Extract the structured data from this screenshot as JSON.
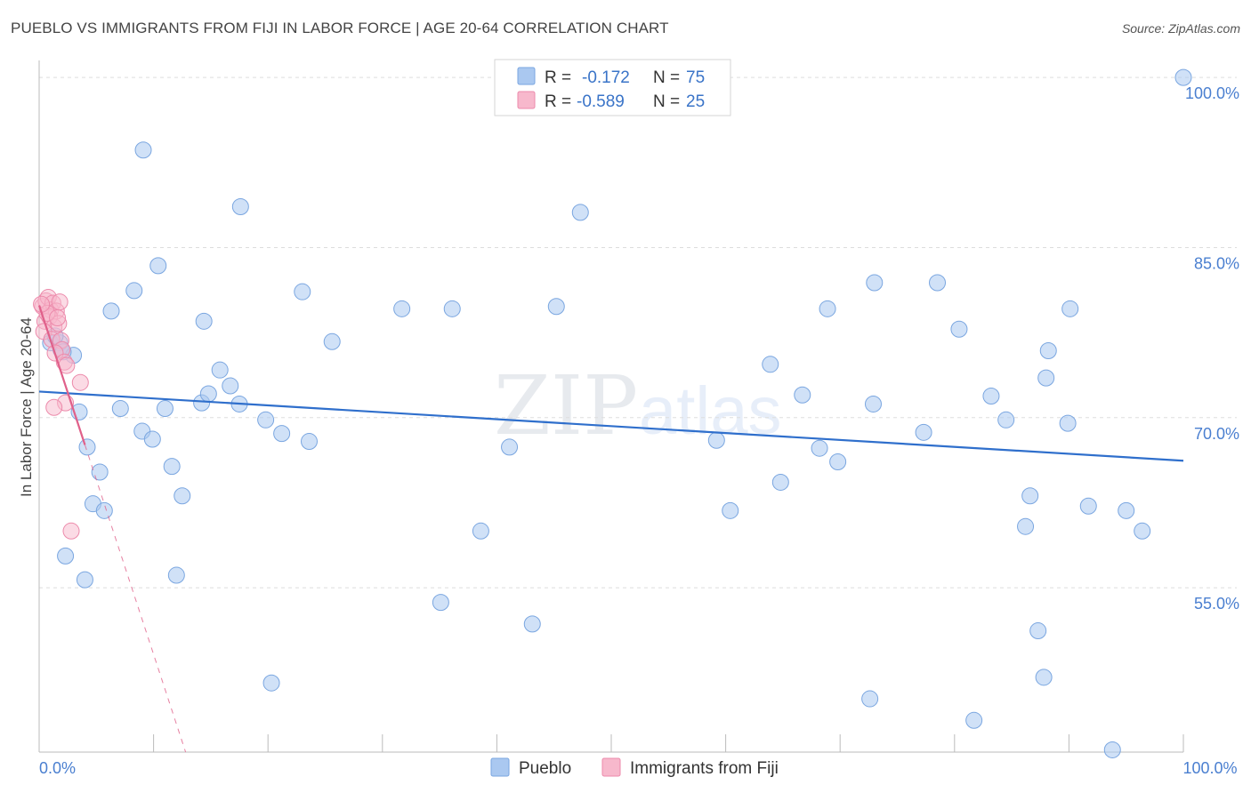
{
  "title": "PUEBLO VS IMMIGRANTS FROM FIJI IN LABOR FORCE | AGE 20-64 CORRELATION CHART",
  "source": "Source: ZipAtlas.com",
  "watermark": {
    "zip": "ZIP",
    "atlas": "atlas"
  },
  "legend": {
    "rows": [
      {
        "r_label": "R =",
        "r_value": "-0.172",
        "n_label": "N =",
        "n_value": "75"
      },
      {
        "r_label": "R =",
        "r_value": "-0.589",
        "n_label": "N =",
        "n_value": "25"
      }
    ]
  },
  "bottom_legend": [
    "Pueblo",
    "Immigrants from Fiji"
  ],
  "colors": {
    "pueblo_fill": "#aac8f0",
    "pueblo_stroke": "#7aa6e0",
    "pueblo_line": "#2f6fcc",
    "fiji_fill": "#f7b8cc",
    "fiji_stroke": "#ec8aab",
    "fiji_line": "#e0608a",
    "tick": "#4a7fd0",
    "grid": "#dddddd"
  },
  "chart_data": {
    "type": "scatter",
    "xlabel": "",
    "ylabel": "In Labor Force | Age 20-64",
    "xlim": [
      0,
      100
    ],
    "ylim": [
      40.5,
      101.5
    ],
    "x_tick_labels": [
      {
        "x": 0,
        "label": "0.0%"
      },
      {
        "x": 100,
        "label": "100.0%"
      }
    ],
    "y_tick_labels": [
      {
        "y": 100,
        "label": "100.0%"
      },
      {
        "y": 85,
        "label": "85.0%"
      },
      {
        "y": 70,
        "label": "70.0%"
      },
      {
        "y": 55,
        "label": "55.0%"
      }
    ],
    "series": [
      {
        "name": "Pueblo",
        "r": -0.172,
        "n": 75,
        "trend": {
          "x": [
            0,
            100
          ],
          "y": [
            72.3,
            66.2
          ]
        },
        "points": [
          [
            1.0,
            76.6
          ],
          [
            1.8,
            76.6
          ],
          [
            1.9,
            76.0
          ],
          [
            3.0,
            75.5
          ],
          [
            3.5,
            70.5
          ],
          [
            4.2,
            67.4
          ],
          [
            2.3,
            57.8
          ],
          [
            4.0,
            55.7
          ],
          [
            5.3,
            65.2
          ],
          [
            4.7,
            62.4
          ],
          [
            5.7,
            61.8
          ],
          [
            6.3,
            79.4
          ],
          [
            7.1,
            70.8
          ],
          [
            8.3,
            81.2
          ],
          [
            9.0,
            68.8
          ],
          [
            9.1,
            93.6
          ],
          [
            9.9,
            68.1
          ],
          [
            10.4,
            83.4
          ],
          [
            11.0,
            70.8
          ],
          [
            11.6,
            65.7
          ],
          [
            12.0,
            56.1
          ],
          [
            12.5,
            63.1
          ],
          [
            14.4,
            78.5
          ],
          [
            14.2,
            71.3
          ],
          [
            14.8,
            72.1
          ],
          [
            15.8,
            74.2
          ],
          [
            16.7,
            72.8
          ],
          [
            17.5,
            71.2
          ],
          [
            17.6,
            88.6
          ],
          [
            19.8,
            69.8
          ],
          [
            20.3,
            46.6
          ],
          [
            21.2,
            68.6
          ],
          [
            23.0,
            81.1
          ],
          [
            23.6,
            67.9
          ],
          [
            25.6,
            76.7
          ],
          [
            31.7,
            79.6
          ],
          [
            35.1,
            53.7
          ],
          [
            36.1,
            79.6
          ],
          [
            38.6,
            60.0
          ],
          [
            41.1,
            67.4
          ],
          [
            43.1,
            51.8
          ],
          [
            45.2,
            79.8
          ],
          [
            47.3,
            88.1
          ],
          [
            59.2,
            68.0
          ],
          [
            60.4,
            61.8
          ],
          [
            63.9,
            74.7
          ],
          [
            64.8,
            64.3
          ],
          [
            66.7,
            72.0
          ],
          [
            68.2,
            67.3
          ],
          [
            68.9,
            79.6
          ],
          [
            69.8,
            66.1
          ],
          [
            73.0,
            81.9
          ],
          [
            72.6,
            45.2
          ],
          [
            72.9,
            71.2
          ],
          [
            77.3,
            68.7
          ],
          [
            78.5,
            81.9
          ],
          [
            80.4,
            77.8
          ],
          [
            81.7,
            43.3
          ],
          [
            83.2,
            71.9
          ],
          [
            84.5,
            69.8
          ],
          [
            86.2,
            60.4
          ],
          [
            86.6,
            63.1
          ],
          [
            87.3,
            51.2
          ],
          [
            88.2,
            75.9
          ],
          [
            88.0,
            73.5
          ],
          [
            87.8,
            47.1
          ],
          [
            89.9,
            69.5
          ],
          [
            90.1,
            79.6
          ],
          [
            91.7,
            62.2
          ],
          [
            93.8,
            40.7
          ],
          [
            95.0,
            61.8
          ],
          [
            96.4,
            60.0
          ],
          [
            100.0,
            100.0
          ],
          [
            1.4,
            77.2
          ],
          [
            2.1,
            75.8
          ]
        ]
      },
      {
        "name": "Immigrants from Fiji",
        "r": -0.589,
        "n": 25,
        "trend": {
          "x": [
            0,
            4
          ],
          "y": [
            79.9,
            67.6
          ]
        },
        "trend_extension": {
          "x": [
            4,
            12.8
          ],
          "y": [
            67.6,
            40.5
          ]
        },
        "points": [
          [
            0.3,
            79.8
          ],
          [
            0.6,
            80.3
          ],
          [
            0.8,
            80.6
          ],
          [
            1.0,
            79.5
          ],
          [
            1.2,
            80.1
          ],
          [
            1.5,
            79.4
          ],
          [
            1.8,
            80.2
          ],
          [
            0.5,
            78.5
          ],
          [
            0.9,
            78.9
          ],
          [
            1.3,
            78.0
          ],
          [
            1.7,
            78.3
          ],
          [
            0.4,
            77.6
          ],
          [
            1.1,
            76.9
          ],
          [
            1.9,
            76.8
          ],
          [
            2.0,
            76.0
          ],
          [
            1.4,
            75.7
          ],
          [
            2.2,
            74.9
          ],
          [
            2.4,
            74.6
          ],
          [
            3.6,
            73.1
          ],
          [
            2.3,
            71.3
          ],
          [
            1.3,
            70.9
          ],
          [
            2.8,
            60.0
          ],
          [
            0.7,
            79.2
          ],
          [
            1.6,
            78.8
          ],
          [
            0.2,
            80.0
          ]
        ]
      }
    ]
  }
}
